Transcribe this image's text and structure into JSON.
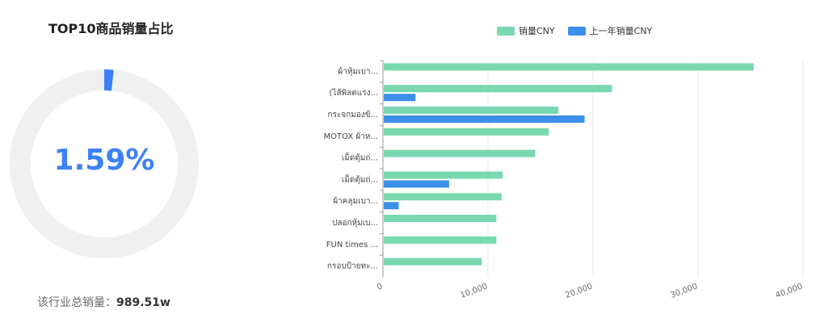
{
  "donut": {
    "title": "TOP10商品销量占比",
    "percent_label": "1.59%",
    "percent_value": 0.0159,
    "total_label": "该行业总销量：",
    "total_value": "989.51w",
    "colors": {
      "accent": "#3b82f6",
      "track": "#f0f0f0"
    }
  },
  "chart_data": {
    "type": "bar",
    "orientation": "horizontal",
    "categories": [
      "ผ้าหุ้มเบา...",
      "(ไส้พิลตแรง...",
      "กระจกมองข้...",
      "MOTOX ผ้าห...",
      "เม็ดตุ้มถ่...",
      "เม็ดตุ้มถ่...",
      "ผ้าคลุมเบา...",
      "ปลอกหุ้มเบ...",
      "FUN times ...",
      "กรอบป้ายทะ..."
    ],
    "series": [
      {
        "name": "销量CNY",
        "color": "#79d8b0",
        "values": [
          35300,
          21800,
          16700,
          15800,
          14500,
          11400,
          11300,
          10800,
          10800,
          9400
        ]
      },
      {
        "name": "上一年销量CNY",
        "color": "#3d8fe8",
        "values": [
          0,
          3100,
          19200,
          0,
          0,
          6300,
          1500,
          0,
          0,
          0
        ]
      }
    ],
    "xlim": [
      0,
      40000
    ],
    "xticks": [
      0,
      10000,
      20000,
      30000,
      40000
    ],
    "xtick_labels": [
      "0",
      "10,000",
      "20,000",
      "30,000",
      "40,000"
    ],
    "grid": true,
    "legend": "top"
  }
}
